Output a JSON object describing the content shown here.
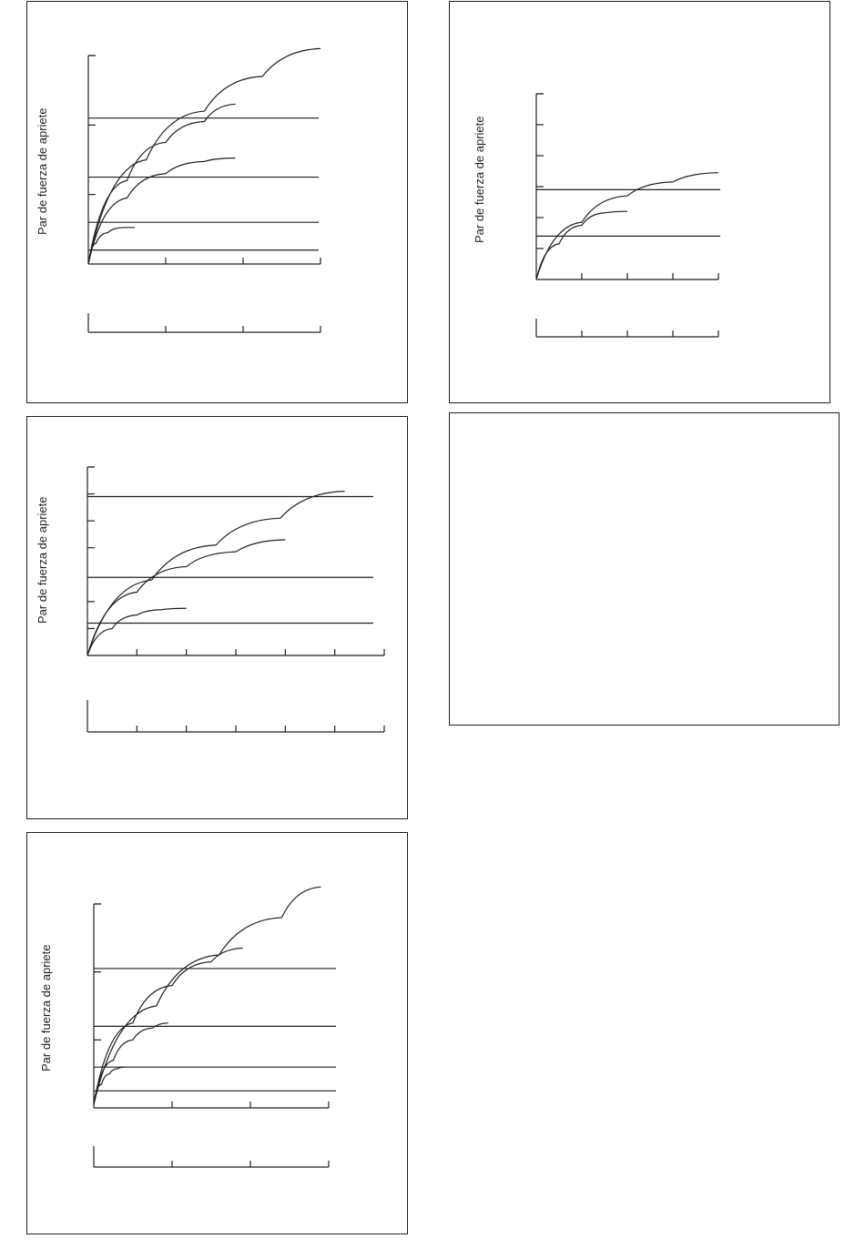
{
  "colors": {
    "ink": "#231f20",
    "background": "#ffffff"
  },
  "chart_data": [
    {
      "type": "line",
      "ylabel": "Par de fuerza de apriete",
      "xlabel": "",
      "xlim": [
        0,
        3
      ],
      "ylim": [
        0,
        6
      ],
      "x_ticks": [
        0,
        1,
        2,
        3
      ],
      "y_ticks": [
        2,
        4,
        6
      ],
      "x_tick_labels": [],
      "y_tick_labels": [],
      "reference_lines": [
        0.4,
        1.2,
        2.5,
        4.2
      ],
      "series": [
        {
          "x": [
            0,
            0.1,
            0.25,
            0.45,
            0.6
          ],
          "values": [
            0,
            0.6,
            0.9,
            1.05,
            1.05
          ]
        },
        {
          "x": [
            0,
            0.5,
            1.0,
            1.5,
            1.9
          ],
          "values": [
            0,
            1.9,
            2.6,
            2.95,
            3.05
          ]
        },
        {
          "x": [
            0,
            0.5,
            1.0,
            1.5,
            1.9
          ],
          "values": [
            0,
            2.4,
            3.5,
            4.1,
            4.6
          ]
        },
        {
          "x": [
            0,
            0.75,
            1.5,
            2.25,
            3.0
          ],
          "values": [
            0,
            3.0,
            4.4,
            5.4,
            6.2
          ]
        }
      ],
      "secondary_axis": {
        "ticks": [
          0,
          1,
          2,
          3
        ],
        "tick_labels": []
      }
    },
    {
      "type": "line",
      "ylabel": "Par de fuerza de apriete",
      "xlabel": "",
      "xlim": [
        0,
        4
      ],
      "ylim": [
        0,
        6
      ],
      "x_ticks": [
        0,
        1,
        2,
        3,
        4
      ],
      "y_ticks": [
        1,
        2,
        3,
        4,
        5,
        6
      ],
      "x_tick_labels": [],
      "y_tick_labels": [],
      "reference_lines": [
        1.4,
        2.9
      ],
      "series": [
        {
          "x": [
            0,
            0.5,
            1.0,
            1.5,
            2.0
          ],
          "values": [
            0,
            1.15,
            1.75,
            2.15,
            2.2
          ]
        },
        {
          "x": [
            0,
            1.0,
            2.0,
            3.0,
            4.0
          ],
          "values": [
            0,
            1.85,
            2.7,
            3.15,
            3.45
          ]
        }
      ],
      "secondary_axis": {
        "ticks": [
          0,
          1,
          2,
          3,
          4
        ],
        "tick_labels": []
      }
    },
    {
      "type": "line",
      "ylabel": "Par de fuerza de apriete",
      "xlabel": "",
      "xlim": [
        0,
        6
      ],
      "ylim": [
        0,
        7
      ],
      "x_ticks": [
        0,
        1,
        2,
        3,
        4,
        5,
        6
      ],
      "y_ticks": [
        1,
        2,
        4,
        5,
        6,
        7
      ],
      "x_tick_labels": [],
      "y_tick_labels": [],
      "reference_lines": [
        1.2,
        2.9,
        5.9
      ],
      "series": [
        {
          "x": [
            0,
            0.5,
            1.0,
            1.5,
            2.0
          ],
          "values": [
            0,
            1.0,
            1.5,
            1.7,
            1.75
          ]
        },
        {
          "x": [
            0,
            1.0,
            2.0,
            3.0,
            4.0
          ],
          "values": [
            0,
            2.35,
            3.3,
            3.85,
            4.3
          ]
        },
        {
          "x": [
            0,
            1.3,
            2.6,
            3.9,
            5.2
          ],
          "values": [
            0,
            2.8,
            4.1,
            5.1,
            6.1
          ]
        }
      ],
      "secondary_axis": {
        "ticks": [
          0,
          1,
          2,
          3,
          4,
          5,
          6
        ],
        "tick_labels": []
      }
    },
    {
      "type": "line",
      "ylabel": "",
      "xlabel": "",
      "series": []
    },
    {
      "type": "line",
      "ylabel": "Par de fuerza de apriete",
      "xlabel": "",
      "xlim": [
        0,
        3
      ],
      "ylim": [
        0,
        6
      ],
      "x_ticks": [
        0,
        1,
        2,
        3
      ],
      "y_ticks": [
        2,
        4,
        6
      ],
      "x_tick_labels": [],
      "y_tick_labels": [],
      "reference_lines": [
        0.5,
        1.2,
        2.4,
        4.1
      ],
      "series": [
        {
          "x": [
            0,
            0.1,
            0.2,
            0.3,
            0.4
          ],
          "values": [
            0.1,
            0.7,
            1.0,
            1.15,
            1.2
          ]
        },
        {
          "x": [
            0,
            0.25,
            0.5,
            0.75,
            0.95
          ],
          "values": [
            0.1,
            1.4,
            2.0,
            2.35,
            2.5
          ]
        },
        {
          "x": [
            0,
            0.5,
            1.0,
            1.5,
            1.9
          ],
          "values": [
            0.1,
            2.5,
            3.6,
            4.3,
            4.7
          ]
        },
        {
          "x": [
            0,
            0.8,
            1.6,
            2.4,
            2.9
          ],
          "values": [
            0.1,
            3.0,
            4.5,
            5.6,
            6.5
          ]
        }
      ],
      "secondary_axis": {
        "ticks": [
          0,
          1,
          2,
          3
        ],
        "tick_labels": []
      }
    }
  ]
}
